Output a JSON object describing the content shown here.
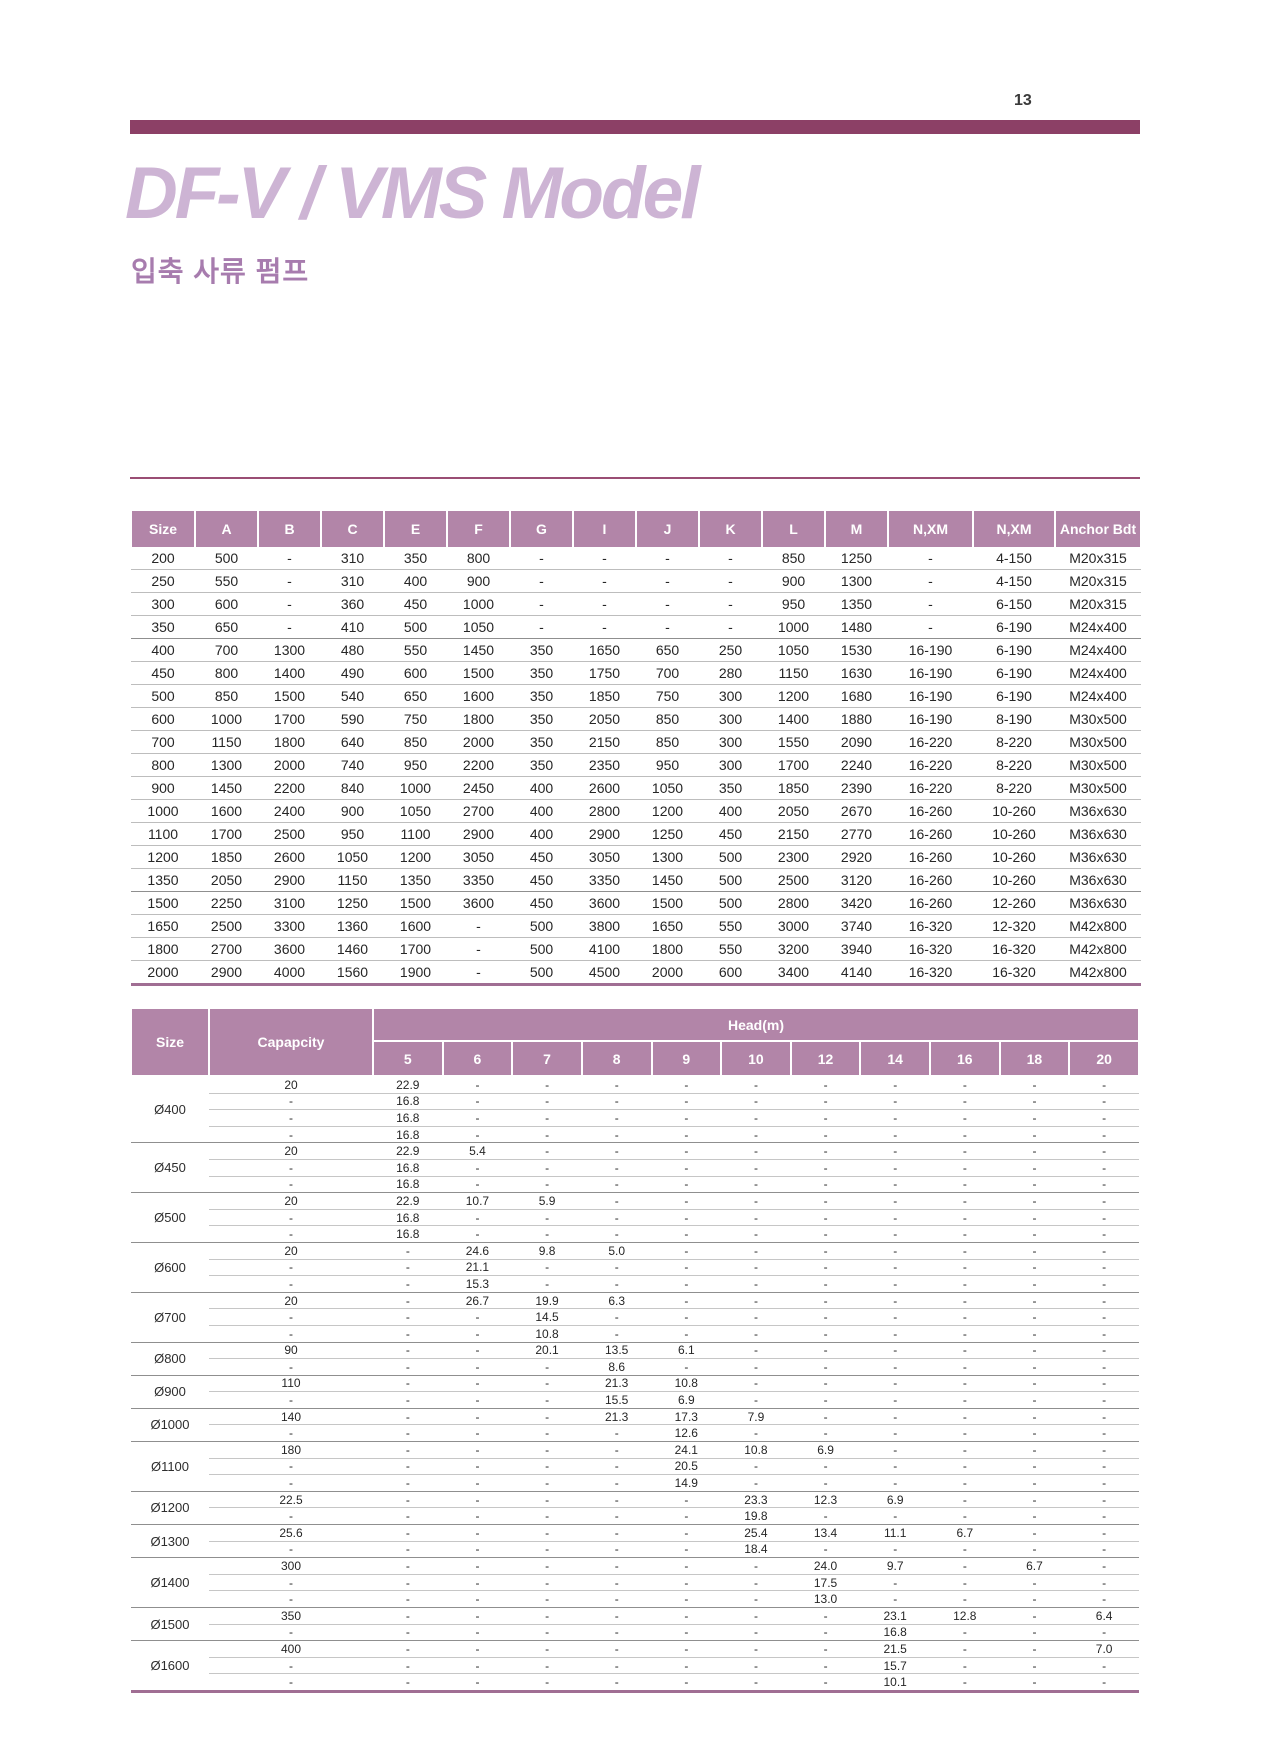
{
  "page": {
    "number": "13"
  },
  "header": {
    "title": "DF-V / VMS Model",
    "subtitle": "입축 사류 펌프"
  },
  "colors": {
    "bar": "#8c4066",
    "table_header_bg": "#b285a8",
    "accent_rule": "#9a4e74",
    "title": "#cdb4d4",
    "subtitle": "#a77cae",
    "table_bottom": "#a06e93"
  },
  "dimensions_table": {
    "columns": [
      "Size",
      "A",
      "B",
      "C",
      "E",
      "F",
      "G",
      "I",
      "J",
      "K",
      "L",
      "M",
      "N,XM",
      "N,XM",
      "Anchor Bdt"
    ],
    "rows": [
      [
        "200",
        "500",
        "-",
        "310",
        "350",
        "800",
        "-",
        "-",
        "-",
        "-",
        "850",
        "1250",
        "-",
        "4-150",
        "M20x315"
      ],
      [
        "250",
        "550",
        "-",
        "310",
        "400",
        "900",
        "-",
        "-",
        "-",
        "-",
        "900",
        "1300",
        "-",
        "4-150",
        "M20x315"
      ],
      [
        "300",
        "600",
        "-",
        "360",
        "450",
        "1000",
        "-",
        "-",
        "-",
        "-",
        "950",
        "1350",
        "-",
        "6-150",
        "M20x315"
      ],
      [
        "350",
        "650",
        "-",
        "410",
        "500",
        "1050",
        "-",
        "-",
        "-",
        "-",
        "1000",
        "1480",
        "-",
        "6-190",
        "M24x400"
      ],
      [
        "400",
        "700",
        "1300",
        "480",
        "550",
        "1450",
        "350",
        "1650",
        "650",
        "250",
        "1050",
        "1530",
        "16-190",
        "6-190",
        "M24x400"
      ],
      [
        "450",
        "800",
        "1400",
        "490",
        "600",
        "1500",
        "350",
        "1750",
        "700",
        "280",
        "1150",
        "1630",
        "16-190",
        "6-190",
        "M24x400"
      ],
      [
        "500",
        "850",
        "1500",
        "540",
        "650",
        "1600",
        "350",
        "1850",
        "750",
        "300",
        "1200",
        "1680",
        "16-190",
        "6-190",
        "M24x400"
      ],
      [
        "600",
        "1000",
        "1700",
        "590",
        "750",
        "1800",
        "350",
        "2050",
        "850",
        "300",
        "1400",
        "1880",
        "16-190",
        "8-190",
        "M30x500"
      ],
      [
        "700",
        "1150",
        "1800",
        "640",
        "850",
        "2000",
        "350",
        "2150",
        "850",
        "300",
        "1550",
        "2090",
        "16-220",
        "8-220",
        "M30x500"
      ],
      [
        "800",
        "1300",
        "2000",
        "740",
        "950",
        "2200",
        "350",
        "2350",
        "950",
        "300",
        "1700",
        "2240",
        "16-220",
        "8-220",
        "M30x500"
      ],
      [
        "900",
        "1450",
        "2200",
        "840",
        "1000",
        "2450",
        "400",
        "2600",
        "1050",
        "350",
        "1850",
        "2390",
        "16-220",
        "8-220",
        "M30x500"
      ],
      [
        "1000",
        "1600",
        "2400",
        "900",
        "1050",
        "2700",
        "400",
        "2800",
        "1200",
        "400",
        "2050",
        "2670",
        "16-260",
        "10-260",
        "M36x630"
      ],
      [
        "1100",
        "1700",
        "2500",
        "950",
        "1100",
        "2900",
        "400",
        "2900",
        "1250",
        "450",
        "2150",
        "2770",
        "16-260",
        "10-260",
        "M36x630"
      ],
      [
        "1200",
        "1850",
        "2600",
        "1050",
        "1200",
        "3050",
        "450",
        "3050",
        "1300",
        "500",
        "2300",
        "2920",
        "16-260",
        "10-260",
        "M36x630"
      ],
      [
        "1350",
        "2050",
        "2900",
        "1150",
        "1350",
        "3350",
        "450",
        "3350",
        "1450",
        "500",
        "2500",
        "3120",
        "16-260",
        "10-260",
        "M36x630"
      ],
      [
        "1500",
        "2250",
        "3100",
        "1250",
        "1500",
        "3600",
        "450",
        "3600",
        "1500",
        "500",
        "2800",
        "3420",
        "16-260",
        "12-260",
        "M36x630"
      ],
      [
        "1650",
        "2500",
        "3300",
        "1360",
        "1600",
        "-",
        "500",
        "3800",
        "1650",
        "550",
        "3000",
        "3740",
        "16-320",
        "12-320",
        "M42x800"
      ],
      [
        "1800",
        "2700",
        "3600",
        "1460",
        "1700",
        "-",
        "500",
        "4100",
        "1800",
        "550",
        "3200",
        "3940",
        "16-320",
        "16-320",
        "M42x800"
      ],
      [
        "2000",
        "2900",
        "4000",
        "1560",
        "1900",
        "-",
        "500",
        "4500",
        "2000",
        "600",
        "3400",
        "4140",
        "16-320",
        "16-320",
        "M42x800"
      ]
    ],
    "separator_after_rows": [
      3,
      14
    ]
  },
  "performance_table": {
    "size_header": "Size",
    "capacity_header": "Capapcity",
    "head_header": "Head(m)",
    "head_columns": [
      "5",
      "6",
      "7",
      "8",
      "9",
      "10",
      "12",
      "14",
      "16",
      "18",
      "20"
    ],
    "groups": [
      {
        "size": "Ø400",
        "rows": [
          {
            "capacity": "20",
            "values": [
              "22.9",
              "-",
              "-",
              "-",
              "-",
              "-",
              "-",
              "-",
              "-",
              "-",
              "-"
            ]
          },
          {
            "capacity": "-",
            "values": [
              "16.8",
              "-",
              "-",
              "-",
              "-",
              "-",
              "-",
              "-",
              "-",
              "-",
              "-"
            ]
          },
          {
            "capacity": "-",
            "values": [
              "16.8",
              "-",
              "-",
              "-",
              "-",
              "-",
              "-",
              "-",
              "-",
              "-",
              "-"
            ]
          },
          {
            "capacity": "-",
            "values": [
              "16.8",
              "-",
              "-",
              "-",
              "-",
              "-",
              "-",
              "-",
              "-",
              "-",
              "-"
            ]
          }
        ]
      },
      {
        "size": "Ø450",
        "rows": [
          {
            "capacity": "20",
            "values": [
              "22.9",
              "5.4",
              "-",
              "-",
              "-",
              "-",
              "-",
              "-",
              "-",
              "-",
              "-"
            ]
          },
          {
            "capacity": "-",
            "values": [
              "16.8",
              "-",
              "-",
              "-",
              "-",
              "-",
              "-",
              "-",
              "-",
              "-",
              "-"
            ]
          },
          {
            "capacity": "-",
            "values": [
              "16.8",
              "-",
              "-",
              "-",
              "-",
              "-",
              "-",
              "-",
              "-",
              "-",
              "-"
            ]
          }
        ]
      },
      {
        "size": "Ø500",
        "rows": [
          {
            "capacity": "20",
            "values": [
              "22.9",
              "10.7",
              "5.9",
              "-",
              "-",
              "-",
              "-",
              "-",
              "-",
              "-",
              "-"
            ]
          },
          {
            "capacity": "-",
            "values": [
              "16.8",
              "-",
              "-",
              "-",
              "-",
              "-",
              "-",
              "-",
              "-",
              "-",
              "-"
            ]
          },
          {
            "capacity": "-",
            "values": [
              "16.8",
              "-",
              "-",
              "-",
              "-",
              "-",
              "-",
              "-",
              "-",
              "-",
              "-"
            ]
          }
        ]
      },
      {
        "size": "Ø600",
        "rows": [
          {
            "capacity": "20",
            "values": [
              "-",
              "24.6",
              "9.8",
              "5.0",
              "-",
              "-",
              "-",
              "-",
              "-",
              "-",
              "-"
            ]
          },
          {
            "capacity": "-",
            "values": [
              "-",
              "21.1",
              "-",
              "-",
              "-",
              "-",
              "-",
              "-",
              "-",
              "-",
              "-"
            ]
          },
          {
            "capacity": "-",
            "values": [
              "-",
              "15.3",
              "-",
              "-",
              "-",
              "-",
              "-",
              "-",
              "-",
              "-",
              "-"
            ]
          }
        ]
      },
      {
        "size": "Ø700",
        "rows": [
          {
            "capacity": "20",
            "values": [
              "-",
              "26.7",
              "19.9",
              "6.3",
              "-",
              "-",
              "-",
              "-",
              "-",
              "-",
              "-"
            ]
          },
          {
            "capacity": "-",
            "values": [
              "-",
              "-",
              "14.5",
              "-",
              "-",
              "-",
              "-",
              "-",
              "-",
              "-",
              "-"
            ]
          },
          {
            "capacity": "-",
            "values": [
              "-",
              "-",
              "10.8",
              "-",
              "-",
              "-",
              "-",
              "-",
              "-",
              "-",
              "-"
            ]
          }
        ]
      },
      {
        "size": "Ø800",
        "rows": [
          {
            "capacity": "90",
            "values": [
              "-",
              "-",
              "20.1",
              "13.5",
              "6.1",
              "-",
              "-",
              "-",
              "-",
              "-",
              "-"
            ]
          },
          {
            "capacity": "-",
            "values": [
              "-",
              "-",
              "-",
              "8.6",
              "-",
              "-",
              "-",
              "-",
              "-",
              "-",
              "-"
            ]
          }
        ]
      },
      {
        "size": "Ø900",
        "rows": [
          {
            "capacity": "110",
            "values": [
              "-",
              "-",
              "-",
              "21.3",
              "10.8",
              "-",
              "-",
              "-",
              "-",
              "-",
              "-"
            ]
          },
          {
            "capacity": "-",
            "values": [
              "-",
              "-",
              "-",
              "15.5",
              "6.9",
              "-",
              "-",
              "-",
              "-",
              "-",
              "-"
            ]
          }
        ]
      },
      {
        "size": "Ø1000",
        "rows": [
          {
            "capacity": "140",
            "values": [
              "-",
              "-",
              "-",
              "21.3",
              "17.3",
              "7.9",
              "-",
              "-",
              "-",
              "-",
              "-"
            ]
          },
          {
            "capacity": "-",
            "values": [
              "-",
              "-",
              "-",
              "-",
              "12.6",
              "-",
              "-",
              "-",
              "-",
              "-",
              "-"
            ]
          }
        ]
      },
      {
        "size": "Ø1100",
        "rows": [
          {
            "capacity": "180",
            "values": [
              "-",
              "-",
              "-",
              "-",
              "24.1",
              "10.8",
              "6.9",
              "-",
              "-",
              "-",
              "-"
            ]
          },
          {
            "capacity": "-",
            "values": [
              "-",
              "-",
              "-",
              "-",
              "20.5",
              "-",
              "-",
              "-",
              "-",
              "-",
              "-"
            ]
          },
          {
            "capacity": "-",
            "values": [
              "-",
              "-",
              "-",
              "-",
              "14.9",
              "-",
              "-",
              "-",
              "-",
              "-",
              "-"
            ]
          }
        ]
      },
      {
        "size": "Ø1200",
        "rows": [
          {
            "capacity": "22.5",
            "values": [
              "-",
              "-",
              "-",
              "-",
              "-",
              "23.3",
              "12.3",
              "6.9",
              "-",
              "-",
              "-"
            ]
          },
          {
            "capacity": "-",
            "values": [
              "-",
              "-",
              "-",
              "-",
              "-",
              "19.8",
              "-",
              "-",
              "-",
              "-",
              "-"
            ]
          }
        ]
      },
      {
        "size": "Ø1300",
        "rows": [
          {
            "capacity": "25.6",
            "values": [
              "-",
              "-",
              "-",
              "-",
              "-",
              "25.4",
              "13.4",
              "11.1",
              "6.7",
              "-",
              "-"
            ]
          },
          {
            "capacity": "-",
            "values": [
              "-",
              "-",
              "-",
              "-",
              "-",
              "18.4",
              "-",
              "-",
              "-",
              "-",
              "-"
            ]
          }
        ]
      },
      {
        "size": "Ø1400",
        "rows": [
          {
            "capacity": "300",
            "values": [
              "-",
              "-",
              "-",
              "-",
              "-",
              "-",
              "24.0",
              "9.7",
              "-",
              "6.7",
              "-"
            ]
          },
          {
            "capacity": "-",
            "values": [
              "-",
              "-",
              "-",
              "-",
              "-",
              "-",
              "17.5",
              "-",
              "-",
              "-",
              "-"
            ]
          },
          {
            "capacity": "-",
            "values": [
              "-",
              "-",
              "-",
              "-",
              "-",
              "-",
              "13.0",
              "-",
              "-",
              "-",
              "-"
            ]
          }
        ]
      },
      {
        "size": "Ø1500",
        "rows": [
          {
            "capacity": "350",
            "values": [
              "-",
              "-",
              "-",
              "-",
              "-",
              "-",
              "-",
              "23.1",
              "12.8",
              "-",
              "6.4"
            ]
          },
          {
            "capacity": "-",
            "values": [
              "-",
              "-",
              "-",
              "-",
              "-",
              "-",
              "-",
              "16.8",
              "-",
              "-",
              "-"
            ]
          }
        ]
      },
      {
        "size": "Ø1600",
        "rows": [
          {
            "capacity": "400",
            "values": [
              "-",
              "-",
              "-",
              "-",
              "-",
              "-",
              "-",
              "21.5",
              "-",
              "-",
              "7.0"
            ]
          },
          {
            "capacity": "-",
            "values": [
              "-",
              "-",
              "-",
              "-",
              "-",
              "-",
              "-",
              "15.7",
              "-",
              "-",
              "-"
            ]
          },
          {
            "capacity": "-",
            "values": [
              "-",
              "-",
              "-",
              "-",
              "-",
              "-",
              "-",
              "10.1",
              "-",
              "-",
              "-"
            ]
          }
        ]
      }
    ]
  }
}
